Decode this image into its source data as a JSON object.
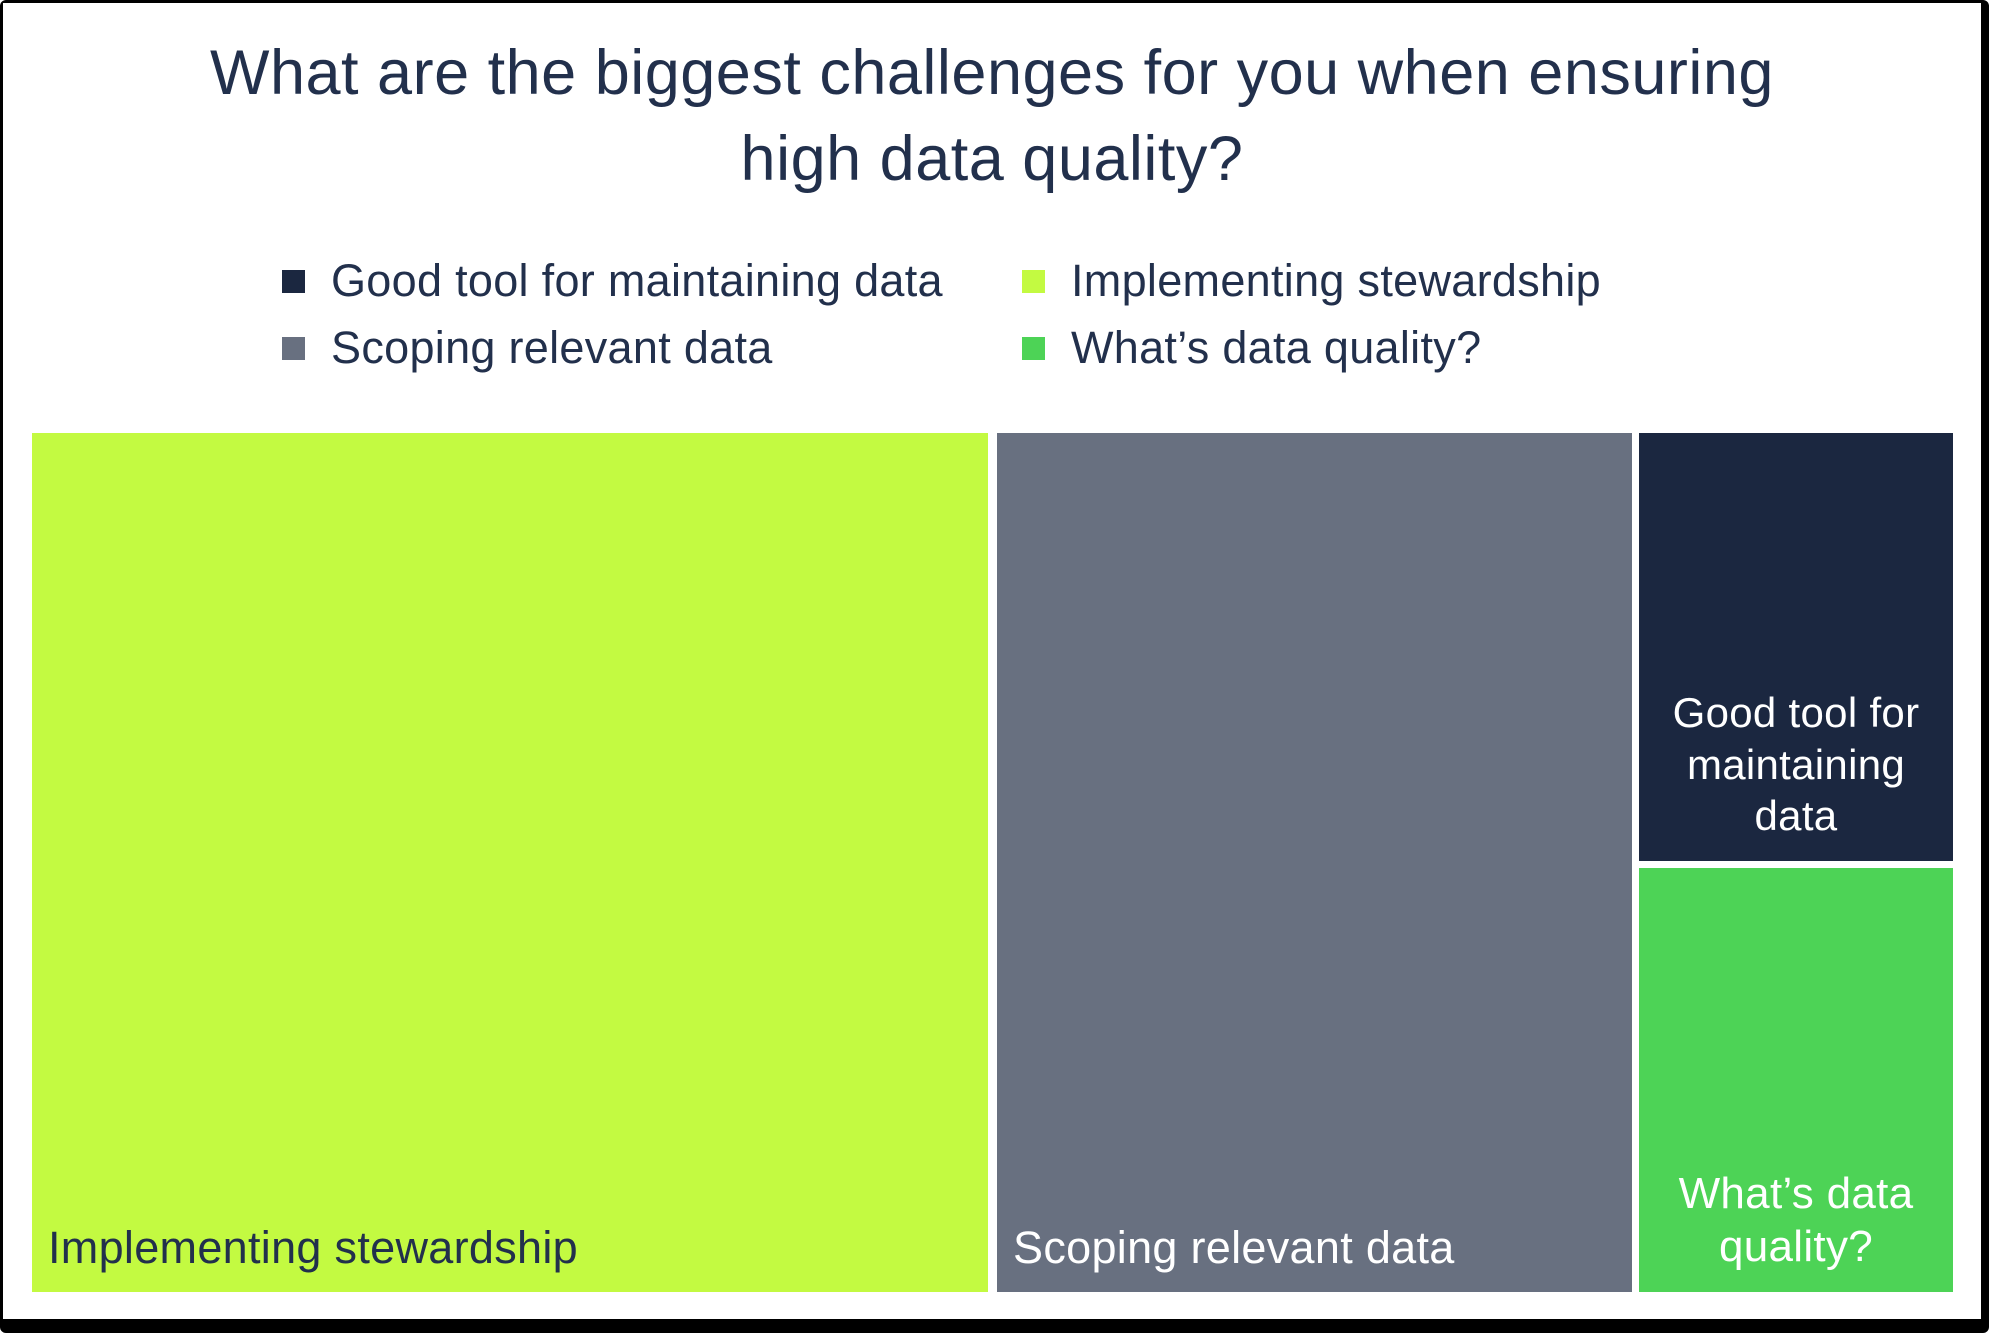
{
  "frame": {
    "background": "#ffffff",
    "border_color": "#000000"
  },
  "title": {
    "text": "What are the biggest challenges for you when ensuring high data quality?",
    "lines": [
      "What are the biggest challenges for you when ensuring",
      "high data quality?"
    ],
    "color": "#22304c"
  },
  "legend": {
    "position": "top",
    "items": [
      {
        "label": "Good tool for maintaining data",
        "color": "#1b2740",
        "text_color": "#22304c"
      },
      {
        "label": "Implementing stewardship",
        "color": "#c3fa41",
        "text_color": "#22304c"
      },
      {
        "label": "Scoping relevant data",
        "color": "#687080",
        "text_color": "#22304c"
      },
      {
        "label": "What’s data quality?",
        "color": "#4dd356",
        "text_color": "#22304c"
      }
    ]
  },
  "treemap": {
    "tiles": [
      {
        "label": "Implementing stewardship",
        "color": "#c3fa41",
        "text_color": "#22304c",
        "area_percent_est": 50
      },
      {
        "label": "Scoping relevant data",
        "color": "#687080",
        "text_color": "#ffffff",
        "area_percent_est": 33
      },
      {
        "label": "Good tool for maintaining data",
        "color": "#1b2740",
        "text_color": "#ffffff",
        "area_percent_est": 8.5
      },
      {
        "label": "What’s data quality?",
        "color": "#4dd356",
        "text_color": "#ffffff",
        "area_percent_est": 8.5
      }
    ]
  },
  "chart_data": {
    "type": "treemap",
    "title": "What are the biggest challenges for you when ensuring high data quality?",
    "categories": [
      "Implementing stewardship",
      "Scoping relevant data",
      "Good tool for maintaining data",
      "What’s data quality?"
    ],
    "values_area_percent_estimated": [
      50,
      33,
      8.5,
      8.5
    ],
    "value_labels_shown": false,
    "colors": [
      "#c3fa41",
      "#687080",
      "#1b2740",
      "#4dd356"
    ],
    "legend_position": "top",
    "legend_entries": [
      "Good tool for maintaining data",
      "Implementing stewardship",
      "Scoping relevant data",
      "What’s data quality?"
    ],
    "layout": "largest tile left, medium tile middle, two small tiles stacked right"
  }
}
